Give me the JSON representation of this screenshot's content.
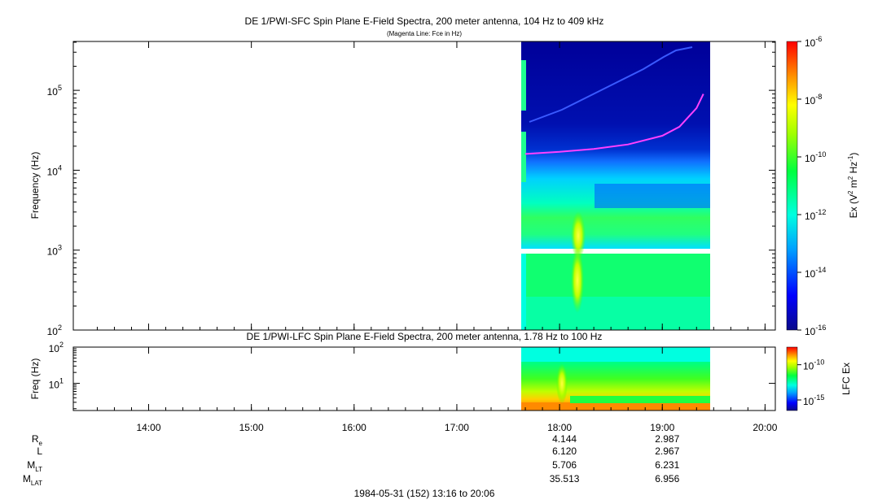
{
  "panel1": {
    "title": "DE 1/PWI-SFC  Spin Plane E-Field Spectra, 200 meter antenna, 104 Hz to 409 kHz",
    "subtitle": "(Magenta Line: Fce in Hz)",
    "ylabel": "Frequency (Hz)",
    "y_ticks": [
      {
        "base": "10",
        "exp": "2",
        "value": 100
      },
      {
        "base": "10",
        "exp": "3",
        "value": 1000
      },
      {
        "base": "10",
        "exp": "4",
        "value": 10000
      },
      {
        "base": "10",
        "exp": "5",
        "value": 100000
      }
    ],
    "colorbar": {
      "label_main": "Ex (V",
      "label_exp1": "2",
      "label_mid": " m",
      "label_exp2": "2",
      "label_mid2": " Hz",
      "label_exp3": "-1",
      "label_end": ")",
      "ticks": [
        {
          "base": "10",
          "exp": "-6",
          "value": -6
        },
        {
          "base": "10",
          "exp": "-8",
          "value": -8
        },
        {
          "base": "10",
          "exp": "-10",
          "value": -10
        },
        {
          "base": "10",
          "exp": "-12",
          "value": -12
        },
        {
          "base": "10",
          "exp": "-14",
          "value": -14
        },
        {
          "base": "10",
          "exp": "-16",
          "value": -16
        }
      ]
    }
  },
  "panel2": {
    "title": "DE 1/PWI-LFC  Spin Plane E-Field Spectra, 200 meter antenna, 1.78 Hz to 100 Hz",
    "ylabel": "Freq (Hz)",
    "y_ticks": [
      {
        "base": "10",
        "exp": "1",
        "value": 10
      },
      {
        "base": "10",
        "exp": "2",
        "value": 100
      }
    ],
    "colorbar": {
      "label": "LFC Ex",
      "ticks": [
        {
          "base": "10",
          "exp": "-10",
          "value": -10
        },
        {
          "base": "10",
          "exp": "-15",
          "value": -15
        }
      ]
    }
  },
  "x_axis": {
    "ticks": [
      "14:00",
      "15:00",
      "16:00",
      "17:00",
      "18:00",
      "19:00",
      "20:00"
    ]
  },
  "ephemeris": {
    "rows": [
      {
        "label": "R",
        "sub": "e",
        "v18": "4.144",
        "v19": "2.987"
      },
      {
        "label": "L",
        "sub": "",
        "v18": "6.120",
        "v19": "2.967"
      },
      {
        "label": "M",
        "sub": "LT",
        "v18": "5.706",
        "v19": "6.231"
      },
      {
        "label": "M",
        "sub": "LAT",
        "v18": "35.513",
        "v19": "6.956"
      }
    ]
  },
  "date_range": "1984-05-31 (152) 13:16 to 20:06",
  "chart_data": {
    "type": "heatmap",
    "title": "DE 1/PWI-SFC  Spin Plane E-Field Spectra, 200 meter antenna, 104 Hz to 409 kHz",
    "subtitle": "(Magenta Line: Fce in Hz)",
    "xlabel": "",
    "ylabel": "Frequency (Hz)",
    "x_range": [
      "13:16",
      "20:06"
    ],
    "data_x_range": [
      "17:37",
      "19:26"
    ],
    "y_scale": "log",
    "ylim": [
      100,
      409000
    ],
    "colorbar_range": [
      -16,
      -6
    ],
    "colorbar_label": "Ex (V2 m2 Hz-1)",
    "fce_line": {
      "times": [
        "17:40",
        "18:00",
        "18:20",
        "18:40",
        "19:00",
        "19:10",
        "19:20",
        "19:24"
      ],
      "freq_hz": [
        16000,
        17000,
        18500,
        21000,
        27000,
        35000,
        60000,
        90000
      ]
    },
    "lfc": {
      "title": "DE 1/PWI-LFC  Spin Plane E-Field Spectra, 200 meter antenna, 1.78 Hz to 100 Hz",
      "ylim": [
        1.78,
        100
      ],
      "y_scale": "log",
      "colorbar_label": "LFC Ex"
    },
    "grid": false
  }
}
